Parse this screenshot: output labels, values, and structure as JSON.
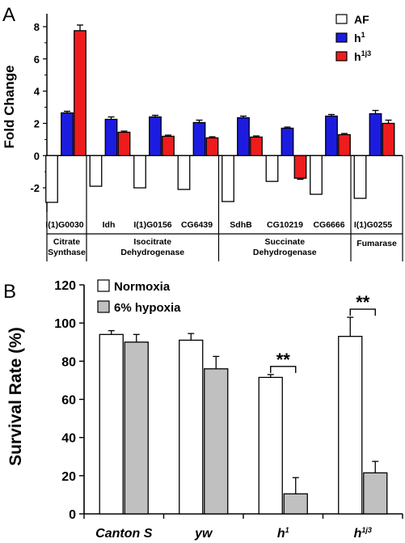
{
  "colors": {
    "AF": "#ffffff",
    "h1": "#1c1ce0",
    "h1j3": "#ee1c1c",
    "normoxia": "#ffffff",
    "hypoxia": "#c0c0c0"
  },
  "chart_data": [
    {
      "panel": "A",
      "type": "bar",
      "ylabel": "Fold Change",
      "ylim": [
        -3.5,
        8.8
      ],
      "yticks": [
        -2,
        0,
        2,
        4,
        6,
        8
      ],
      "legend_position": "top-right",
      "series": [
        {
          "name": "AF",
          "sup": "",
          "key": "AF"
        },
        {
          "name": "h",
          "sup": "1",
          "key": "h1"
        },
        {
          "name": "h",
          "sup": "1j3",
          "key": "h1j3"
        }
      ],
      "genes": [
        {
          "name": "I(1)G0030",
          "AF": -2.9,
          "h1": 2.65,
          "h1_err": 0.1,
          "h1j3": 7.75,
          "h1j3_err": 0.35
        },
        {
          "name": "Idh",
          "AF": -1.9,
          "h1": 2.25,
          "h1_err": 0.15,
          "h1j3": 1.45,
          "h1j3_err": 0.07
        },
        {
          "name": "I(1)G0156",
          "AF": -2.0,
          "h1": 2.4,
          "h1_err": 0.1,
          "h1j3": 1.2,
          "h1j3_err": 0.07
        },
        {
          "name": "CG6439",
          "AF": -2.1,
          "h1": 2.05,
          "h1_err": 0.15,
          "h1j3": 1.1,
          "h1j3_err": 0.07
        },
        {
          "name": "SdhB",
          "AF": -2.85,
          "h1": 2.35,
          "h1_err": 0.1,
          "h1j3": 1.15,
          "h1j3_err": 0.07
        },
        {
          "name": "CG10219",
          "AF": -1.6,
          "h1": 1.7,
          "h1_err": 0.07,
          "h1j3": -1.4,
          "h1j3_err": 0.07
        },
        {
          "name": "CG6666",
          "AF": -2.4,
          "h1": 2.45,
          "h1_err": 0.1,
          "h1j3": 1.3,
          "h1j3_err": 0.07
        },
        {
          "name": "I(1)G0255",
          "AF": -2.65,
          "h1": 2.6,
          "h1_err": 0.2,
          "h1j3": 2.0,
          "h1j3_err": 0.2
        }
      ],
      "groups": [
        {
          "line1": "Citrate",
          "line2": "Synthase",
          "start": 0,
          "end": 0
        },
        {
          "line1": "Isocitrate",
          "line2": "Dehydrogenase",
          "start": 1,
          "end": 3
        },
        {
          "line1": "Succinate",
          "line2": "Dehydrogenase",
          "start": 4,
          "end": 6
        },
        {
          "line1": "Fumarase",
          "line2": "",
          "start": 7,
          "end": 7
        }
      ]
    },
    {
      "panel": "B",
      "type": "bar",
      "ylabel": "Survival Rate (%)",
      "ylim": [
        0,
        120
      ],
      "yticks": [
        0,
        20,
        40,
        60,
        80,
        100,
        120
      ],
      "legend_position": "top-left",
      "series": [
        {
          "name": "Normoxia",
          "key": "normoxia"
        },
        {
          "name": "6% hypoxia",
          "key": "hypoxia"
        }
      ],
      "categories": [
        {
          "name": "Canton S",
          "sup": "",
          "normoxia": 94,
          "normoxia_err": 2,
          "hypoxia": 90,
          "hypoxia_err": 4,
          "sig": ""
        },
        {
          "name": "yw",
          "sup": "",
          "normoxia": 91,
          "normoxia_err": 3.5,
          "hypoxia": 76,
          "hypoxia_err": 6.5,
          "sig": ""
        },
        {
          "name": "h",
          "sup": "1",
          "normoxia": 71.5,
          "normoxia_err": 1.5,
          "hypoxia": 10.5,
          "hypoxia_err": 8.5,
          "sig": "**"
        },
        {
          "name": "h",
          "sup": "1j3",
          "normoxia": 93,
          "normoxia_err": 10,
          "hypoxia": 21.5,
          "hypoxia_err": 6,
          "sig": "**"
        }
      ]
    }
  ],
  "panel_labels": {
    "a": "A",
    "b": "B"
  }
}
